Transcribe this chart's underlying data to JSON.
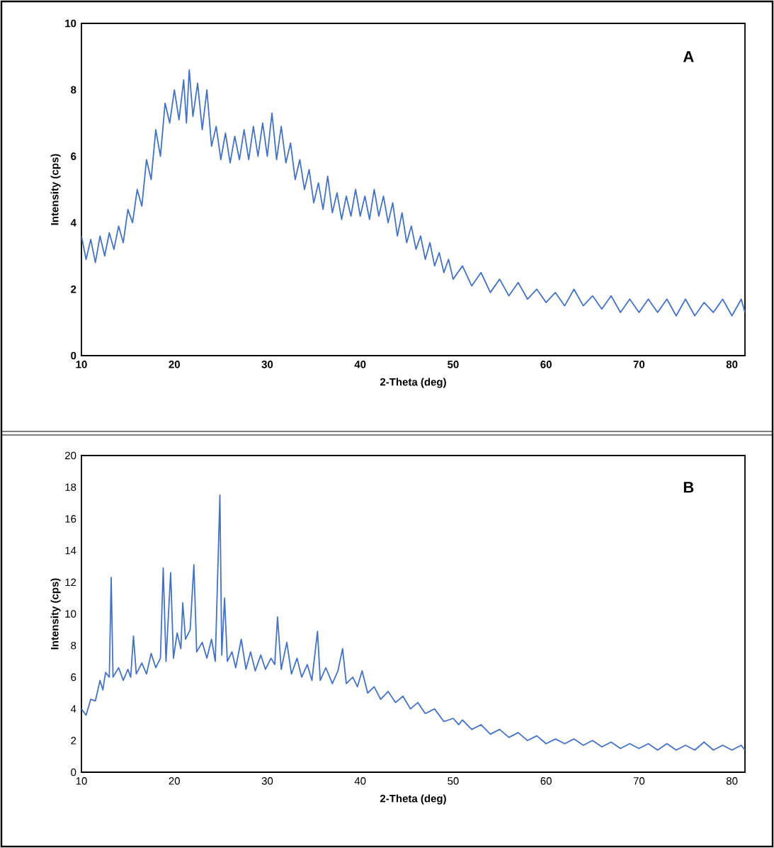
{
  "chart_data": [
    {
      "type": "line",
      "xlabel": "2-Theta (deg)",
      "ylabel": "Intensity (cps)",
      "annotations": [
        "A"
      ],
      "xlim": [
        10,
        81.4
      ],
      "ylim": [
        0,
        10
      ],
      "xticks": [
        10,
        20,
        30,
        40,
        50,
        60,
        70,
        80
      ],
      "yticks": [
        0,
        2,
        4,
        6,
        8,
        10
      ],
      "x": [
        10,
        10.5,
        11,
        11.5,
        12,
        12.5,
        13,
        13.5,
        14,
        14.5,
        15,
        15.5,
        16,
        16.5,
        17,
        17.5,
        18,
        18.5,
        19,
        19.5,
        20,
        20.5,
        21,
        21.3,
        21.6,
        22,
        22.5,
        23,
        23.5,
        24,
        24.5,
        25,
        25.5,
        26,
        26.5,
        27,
        27.5,
        28,
        28.5,
        29,
        29.5,
        30,
        30.5,
        31,
        31.5,
        32,
        32.5,
        33,
        33.5,
        34,
        34.5,
        35,
        35.5,
        36,
        36.5,
        37,
        37.5,
        38,
        38.5,
        39,
        39.5,
        40,
        40.5,
        41,
        41.5,
        42,
        42.5,
        43,
        43.5,
        44,
        44.5,
        45,
        45.5,
        46,
        46.5,
        47,
        47.5,
        48,
        48.5,
        49,
        49.5,
        50,
        51,
        52,
        53,
        54,
        55,
        56,
        57,
        58,
        59,
        60,
        61,
        62,
        63,
        64,
        65,
        66,
        67,
        68,
        69,
        70,
        71,
        72,
        73,
        74,
        75,
        76,
        77,
        78,
        79,
        80,
        81,
        81.4
      ],
      "series": [
        {
          "color": "#4472c4",
          "values": [
            3.6,
            2.9,
            3.5,
            2.8,
            3.6,
            3.0,
            3.7,
            3.2,
            3.9,
            3.4,
            4.4,
            4.0,
            5.0,
            4.5,
            5.9,
            5.3,
            6.8,
            6.0,
            7.6,
            7.0,
            8.0,
            7.1,
            8.3,
            7.0,
            8.6,
            7.2,
            8.2,
            6.8,
            8.0,
            6.3,
            6.9,
            5.9,
            6.7,
            5.8,
            6.6,
            5.9,
            6.8,
            5.9,
            6.9,
            6.0,
            7.0,
            6.0,
            7.3,
            5.9,
            6.9,
            5.8,
            6.4,
            5.3,
            5.9,
            5.0,
            5.6,
            4.6,
            5.2,
            4.4,
            5.4,
            4.3,
            4.9,
            4.1,
            4.8,
            4.2,
            5.0,
            4.2,
            4.8,
            4.1,
            5.0,
            4.2,
            4.8,
            4.0,
            4.6,
            3.6,
            4.3,
            3.4,
            3.9,
            3.2,
            3.6,
            2.9,
            3.4,
            2.7,
            3.1,
            2.5,
            2.9,
            2.3,
            2.7,
            2.1,
            2.5,
            1.9,
            2.3,
            1.8,
            2.2,
            1.7,
            2.0,
            1.6,
            1.9,
            1.5,
            2.0,
            1.5,
            1.8,
            1.4,
            1.8,
            1.3,
            1.7,
            1.3,
            1.7,
            1.3,
            1.7,
            1.2,
            1.7,
            1.2,
            1.6,
            1.3,
            1.7,
            1.2,
            1.7,
            1.3
          ]
        }
      ]
    },
    {
      "type": "line",
      "xlabel": "2-Theta (deg)",
      "ylabel": "Intensity (cps)",
      "annotations": [
        "B"
      ],
      "xlim": [
        10,
        81.4
      ],
      "ylim": [
        0,
        20
      ],
      "xticks": [
        10,
        20,
        30,
        40,
        50,
        60,
        70,
        80
      ],
      "yticks": [
        0,
        2,
        4,
        6,
        8,
        10,
        12,
        14,
        16,
        18,
        20
      ],
      "x": [
        10,
        10.5,
        11,
        11.5,
        12,
        12.3,
        12.6,
        13,
        13.2,
        13.4,
        14,
        14.5,
        15,
        15.3,
        15.6,
        15.9,
        16.5,
        17,
        17.5,
        18,
        18.5,
        18.8,
        19.1,
        19.6,
        19.9,
        20.3,
        20.7,
        20.9,
        21.2,
        21.7,
        22.1,
        22.4,
        23,
        23.5,
        24,
        24.4,
        24.9,
        25.1,
        25.4,
        25.7,
        26.2,
        26.6,
        27.2,
        27.7,
        28.2,
        28.7,
        29.3,
        29.8,
        30.4,
        30.8,
        31.1,
        31.5,
        32.1,
        32.6,
        33.2,
        33.7,
        34.3,
        34.8,
        35.4,
        35.7,
        36.3,
        37,
        37.6,
        38.1,
        38.5,
        39.2,
        39.7,
        40.2,
        40.8,
        41.5,
        42.2,
        43,
        43.8,
        44.6,
        45.4,
        46.2,
        47,
        48,
        49,
        50,
        50.6,
        51,
        52,
        53,
        54,
        55,
        56,
        57,
        58,
        59,
        60,
        61,
        62,
        63,
        64,
        65,
        66,
        67,
        68,
        69,
        70,
        71,
        72,
        73,
        74,
        75,
        76,
        77,
        78,
        79,
        80,
        81,
        81.4
      ],
      "series": [
        {
          "color": "#4472c4",
          "values": [
            4.0,
            3.6,
            4.6,
            4.5,
            5.8,
            5.2,
            6.3,
            6.0,
            12.3,
            6.0,
            6.6,
            5.8,
            6.5,
            6.0,
            8.6,
            6.2,
            6.9,
            6.2,
            7.5,
            6.6,
            7.2,
            12.9,
            7.0,
            12.6,
            7.2,
            8.8,
            7.8,
            10.7,
            8.4,
            9.0,
            13.1,
            7.6,
            8.2,
            7.2,
            8.4,
            7.0,
            17.5,
            7.4,
            11.0,
            7.0,
            7.6,
            6.6,
            8.4,
            6.5,
            7.6,
            6.4,
            7.4,
            6.5,
            7.2,
            6.8,
            9.8,
            6.5,
            8.2,
            6.2,
            7.2,
            6.0,
            6.8,
            5.8,
            8.9,
            5.8,
            6.6,
            5.6,
            6.4,
            7.8,
            5.6,
            6.0,
            5.4,
            6.4,
            5.0,
            5.4,
            4.6,
            5.1,
            4.4,
            4.8,
            4.0,
            4.4,
            3.7,
            4.0,
            3.2,
            3.4,
            3.0,
            3.3,
            2.7,
            3.0,
            2.4,
            2.7,
            2.2,
            2.5,
            2.0,
            2.3,
            1.8,
            2.1,
            1.8,
            2.1,
            1.7,
            2.0,
            1.6,
            1.9,
            1.5,
            1.8,
            1.5,
            1.8,
            1.4,
            1.8,
            1.4,
            1.7,
            1.4,
            1.9,
            1.4,
            1.7,
            1.4,
            1.7,
            1.4
          ]
        }
      ]
    }
  ]
}
